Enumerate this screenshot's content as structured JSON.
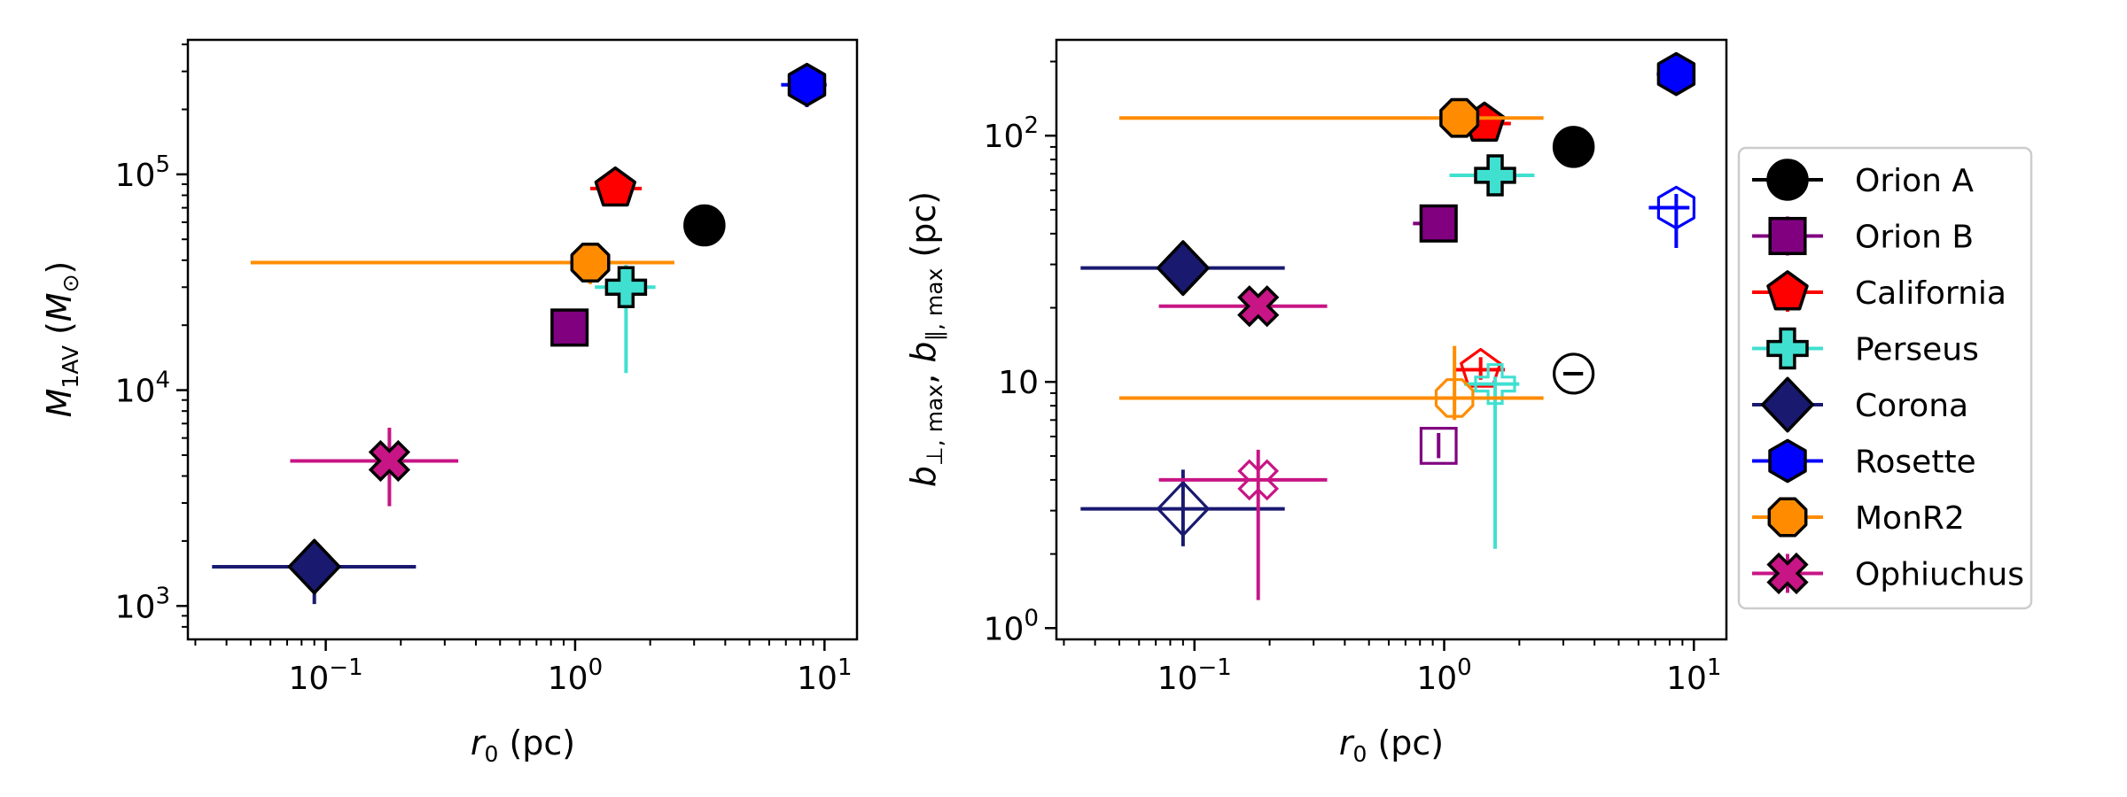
{
  "chart_data": [
    {
      "type": "scatter",
      "panel": "left",
      "xscale": "log",
      "yscale": "log",
      "xlim": [
        0.028,
        13.5
      ],
      "ylim": [
        700,
        420000
      ],
      "xlabel": {
        "symbol": "r",
        "sub": "0",
        "unit": " (pc)"
      },
      "ylabel": {
        "symbol": "M",
        "sub": "1AV",
        "unit_open": " (",
        "unit_symbol": "M",
        "unit_sub": "⊙",
        "unit_close": ")"
      },
      "xticks": [
        {
          "value": 0.1,
          "base": "10",
          "exp": "−1"
        },
        {
          "value": 1,
          "base": "10",
          "exp": "0"
        },
        {
          "value": 10,
          "base": "10",
          "exp": "1"
        }
      ],
      "yticks": [
        {
          "value": 1000,
          "base": "10",
          "exp": "3"
        },
        {
          "value": 10000,
          "base": "10",
          "exp": "4"
        },
        {
          "value": 100000,
          "base": "10",
          "exp": "5"
        }
      ],
      "series": [
        {
          "name": "Orion A",
          "x": 3.3,
          "y": 58000,
          "xerr": [
            3.0,
            3.6
          ],
          "yerr": [
            58000,
            58000
          ],
          "filled": true
        },
        {
          "name": "Orion B",
          "x": 0.95,
          "y": 19500,
          "xerr": [
            0.95,
            0.95
          ],
          "yerr": [
            19500,
            19500
          ],
          "filled": true
        },
        {
          "name": "California",
          "x": 1.45,
          "y": 86000,
          "xerr": [
            1.15,
            1.85
          ],
          "yerr": [
            72000,
            98000
          ],
          "filled": true
        },
        {
          "name": "Perseus",
          "x": 1.6,
          "y": 30000,
          "xerr": [
            1.2,
            2.1
          ],
          "yerr": [
            12000,
            38000
          ],
          "filled": true
        },
        {
          "name": "Corona",
          "x": 0.09,
          "y": 1520,
          "xerr": [
            0.035,
            0.23
          ],
          "yerr": [
            1020,
            1860
          ],
          "filled": true
        },
        {
          "name": "Rosette",
          "x": 8.5,
          "y": 260000,
          "xerr": [
            6.7,
            10.2
          ],
          "yerr": [
            205000,
            300000
          ],
          "filled": true
        },
        {
          "name": "MonR2",
          "x": 1.15,
          "y": 39000,
          "xerr": [
            0.05,
            2.5
          ],
          "yerr": [
            31000,
            48000
          ],
          "filled": true
        },
        {
          "name": "Ophiuchus",
          "x": 0.18,
          "y": 4700,
          "xerr": [
            0.072,
            0.34
          ],
          "yerr": [
            2900,
            6700
          ],
          "filled": true
        }
      ]
    },
    {
      "type": "scatter",
      "panel": "right",
      "xscale": "log",
      "yscale": "log",
      "xlim": [
        0.028,
        13.5
      ],
      "ylim": [
        0.9,
        245
      ],
      "xlabel": {
        "symbol": "r",
        "sub": "0",
        "unit": " (pc)"
      },
      "ylabel": {
        "sym1": "b",
        "sub1": "⊥, max",
        "comma": ", ",
        "sym2": "b",
        "sub2": "∥, max",
        "unit": " (pc)"
      },
      "xticks": [
        {
          "value": 0.1,
          "base": "10",
          "exp": "−1"
        },
        {
          "value": 1,
          "base": "10",
          "exp": "0"
        },
        {
          "value": 10,
          "base": "10",
          "exp": "1"
        }
      ],
      "yticks": [
        {
          "value": 1,
          "base": "10",
          "exp": "0"
        },
        {
          "value": 10,
          "base": "10"
        },
        {
          "value": 100,
          "base": "10",
          "exp": "2"
        }
      ],
      "series_perp": [
        {
          "name": "Orion A",
          "x": 3.3,
          "y": 90,
          "xerr": [
            3.0,
            3.6
          ],
          "yerr": [
            90,
            90
          ],
          "filled": true
        },
        {
          "name": "Orion B",
          "x": 0.95,
          "y": 44,
          "xerr": [
            0.75,
            0.95
          ],
          "yerr": [
            40,
            48
          ],
          "filled": true
        },
        {
          "name": "California",
          "x": 1.45,
          "y": 112,
          "xerr": [
            1.15,
            1.85
          ],
          "yerr": [
            100,
            122
          ],
          "filled": true
        },
        {
          "name": "Perseus",
          "x": 1.6,
          "y": 69,
          "xerr": [
            1.05,
            2.3
          ],
          "yerr": [
            60,
            79
          ],
          "filled": true
        },
        {
          "name": "Corona",
          "x": 0.09,
          "y": 29,
          "xerr": [
            0.035,
            0.23
          ],
          "yerr": [
            25,
            33
          ],
          "filled": true
        },
        {
          "name": "Rosette",
          "x": 8.5,
          "y": 178,
          "xerr": [
            7.1,
            9.6
          ],
          "yerr": [
            178,
            178
          ],
          "filled": true
        },
        {
          "name": "MonR2",
          "x": 1.15,
          "y": 118,
          "xerr": [
            0.05,
            2.5
          ],
          "yerr": [
            118,
            118
          ],
          "filled": true
        },
        {
          "name": "Ophiuchus",
          "x": 0.18,
          "y": 20.3,
          "xerr": [
            0.072,
            0.34
          ],
          "yerr": [
            20.3,
            20.3
          ],
          "filled": true
        }
      ],
      "series_parallel": [
        {
          "name": "Orion A",
          "x": 3.3,
          "y": 10.8,
          "xerr": [
            3.0,
            3.6
          ],
          "yerr": [
            10.8,
            10.8
          ],
          "filled": false
        },
        {
          "name": "Orion B",
          "x": 0.95,
          "y": 5.5,
          "xerr": [
            0.95,
            0.95
          ],
          "yerr": [
            4.9,
            6.2
          ],
          "filled": false
        },
        {
          "name": "California",
          "x": 1.4,
          "y": 11.2,
          "xerr": [
            1.1,
            1.75
          ],
          "yerr": [
            10.2,
            12.6
          ],
          "filled": false
        },
        {
          "name": "Perseus",
          "x": 1.6,
          "y": 9.8,
          "xerr": [
            1.2,
            2.0
          ],
          "yerr": [
            2.1,
            10.5
          ],
          "filled": false
        },
        {
          "name": "Corona",
          "x": 0.09,
          "y": 3.05,
          "xerr": [
            0.035,
            0.23
          ],
          "yerr": [
            2.15,
            4.4
          ],
          "filled": false
        },
        {
          "name": "Rosette",
          "x": 8.5,
          "y": 51,
          "xerr": [
            6.6,
            9.6
          ],
          "yerr": [
            35,
            58
          ],
          "filled": false
        },
        {
          "name": "MonR2",
          "x": 1.1,
          "y": 8.6,
          "xerr": [
            0.05,
            2.5
          ],
          "yerr": [
            7.0,
            14.0
          ],
          "filled": false
        },
        {
          "name": "Ophiuchus",
          "x": 0.18,
          "y": 4.0,
          "xerr": [
            0.072,
            0.34
          ],
          "yerr": [
            1.3,
            5.3
          ],
          "filled": false
        }
      ]
    }
  ],
  "legend": {
    "placement": "right, outside plot",
    "entries": [
      {
        "label": "Orion A",
        "color": "#000000",
        "marker": "circle"
      },
      {
        "label": "Orion B",
        "color": "#800080",
        "marker": "square"
      },
      {
        "label": "California",
        "color": "#ff0000",
        "marker": "pentagon"
      },
      {
        "label": "Perseus",
        "color": "#40e0d0",
        "marker": "plus"
      },
      {
        "label": "Corona",
        "color": "#191970",
        "marker": "diamond"
      },
      {
        "label": "Rosette",
        "color": "#0000ff",
        "marker": "hexagon"
      },
      {
        "label": "MonR2",
        "color": "#ff8c00",
        "marker": "octagon"
      },
      {
        "label": "Ophiuchus",
        "color": "#c71585",
        "marker": "x"
      }
    ]
  }
}
